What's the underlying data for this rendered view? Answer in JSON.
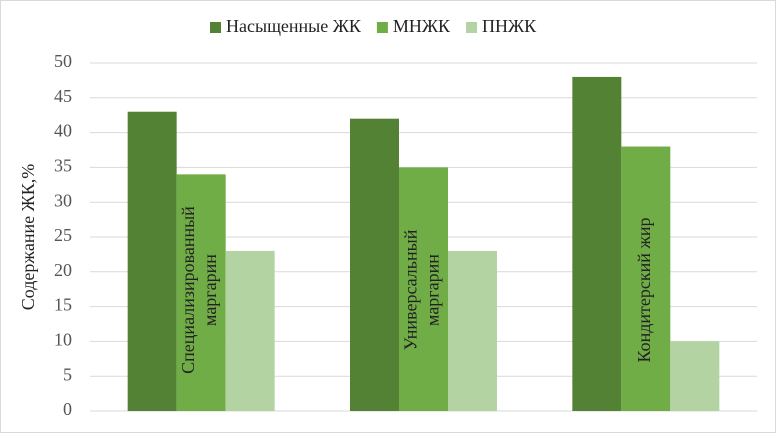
{
  "chart_data": {
    "type": "bar",
    "categories": [
      [
        "Специализированный",
        "маргарин"
      ],
      [
        "Универсальный",
        "маргарин"
      ],
      [
        "Кондитерский жир"
      ]
    ],
    "series": [
      {
        "name": "Насыщенные ЖК",
        "color": "#548235",
        "values": [
          43,
          42,
          48
        ]
      },
      {
        "name": "МНЖК",
        "color": "#70ad47",
        "values": [
          34,
          35,
          38
        ]
      },
      {
        "name": "ПНЖК",
        "color": "#b4d3a3",
        "values": [
          23,
          23,
          10
        ]
      }
    ],
    "y_label": "Содержание ЖК,%",
    "ylim": [
      0,
      50
    ],
    "yticks": [
      0,
      5,
      10,
      15,
      20,
      25,
      30,
      35,
      40,
      45,
      50
    ],
    "grid": true,
    "legend": "top"
  }
}
